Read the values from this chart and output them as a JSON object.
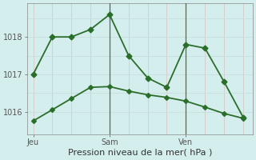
{
  "xlabel": "Pression niveau de la mer( hPa )",
  "background_color": "#d4eeee",
  "grid_color_h": "#c8dede",
  "grid_color_v": "#d8c8c8",
  "line_color": "#2a6e2a",
  "line1_x": [
    0,
    1,
    2,
    3,
    4,
    5,
    6,
    7,
    8,
    9,
    10,
    11
  ],
  "line1_y": [
    1017.0,
    1018.0,
    1018.0,
    1018.2,
    1018.6,
    1017.5,
    1016.9,
    1016.65,
    1017.8,
    1017.7,
    1016.8,
    1015.85
  ],
  "line2_x": [
    0,
    1,
    2,
    3,
    4,
    5,
    6,
    7,
    8,
    9,
    10,
    11
  ],
  "line2_y": [
    1015.75,
    1016.05,
    1016.35,
    1016.65,
    1016.67,
    1016.55,
    1016.45,
    1016.38,
    1016.28,
    1016.12,
    1015.95,
    1015.82
  ],
  "ylim": [
    1015.4,
    1018.9
  ],
  "yticks": [
    1016,
    1017,
    1018
  ],
  "xtick_pos": [
    0,
    4,
    8
  ],
  "xtick_labels": [
    "Jeu",
    "Sam",
    "Ven"
  ],
  "vline_pos": [
    4,
    8
  ],
  "vline_color": "#556655",
  "marker1": "D",
  "marker2": "D",
  "markersize1": 3.5,
  "markersize2": 3.0,
  "linewidth": 1.3
}
